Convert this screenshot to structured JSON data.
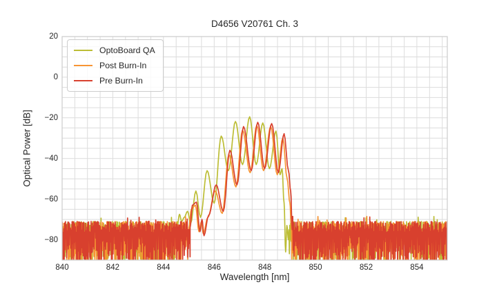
{
  "chart_data": {
    "type": "line",
    "title": "D4656 V20761 Ch. 3",
    "xlabel": "Wavelength [nm]",
    "ylabel": "Optical Power [dB]",
    "xlim": [
      840,
      855.2
    ],
    "ylim": [
      -90,
      20
    ],
    "xticks": [
      840,
      842,
      844,
      846,
      848,
      850,
      852,
      854
    ],
    "yticks": [
      20,
      0,
      -20,
      -40,
      -60,
      -80
    ],
    "minor_grid_x_step_nm": 0.5,
    "minor_grid_y_step_db": 5,
    "grid": true,
    "grid_color": "#dcdcdc",
    "frame_color": "#cccccc",
    "background_color": "#ffffff",
    "legend_position": "upper left",
    "noise_floor": {
      "top_db": -72,
      "bottom_db": -90,
      "description": "dense random noise band left of 844.8 nm and right of 849.1 nm, clipped at axis bottom"
    },
    "series": [
      {
        "name": "OptoBoard QA",
        "color": "#bcbd35",
        "seed": 7,
        "noise_regions": [
          [
            840,
            844.55
          ],
          [
            848.95,
            855.2
          ]
        ],
        "spectrum_points": [
          [
            844.55,
            -73
          ],
          [
            844.63,
            -67.5
          ],
          [
            844.72,
            -71
          ],
          [
            844.82,
            -69
          ],
          [
            844.95,
            -66
          ],
          [
            845.07,
            -72
          ],
          [
            845.28,
            -56
          ],
          [
            845.46,
            -69
          ],
          [
            845.72,
            -46
          ],
          [
            846.0,
            -62
          ],
          [
            846.28,
            -29
          ],
          [
            846.56,
            -46
          ],
          [
            846.84,
            -21.8
          ],
          [
            847.12,
            -43
          ],
          [
            847.4,
            -19.5
          ],
          [
            847.66,
            -43
          ],
          [
            847.92,
            -22.5
          ],
          [
            848.18,
            -45
          ],
          [
            848.44,
            -26.5
          ],
          [
            848.6,
            -48
          ],
          [
            848.68,
            -45
          ],
          [
            848.76,
            -62
          ],
          [
            848.82,
            -86
          ],
          [
            848.87,
            -73
          ],
          [
            848.93,
            -80
          ]
        ]
      },
      {
        "name": "Post Burn-In",
        "color": "#f79433",
        "seed": 13,
        "noise_regions": [
          [
            840,
            845.0
          ],
          [
            849.05,
            855.2
          ]
        ],
        "spectrum_points": [
          [
            845.0,
            -74
          ],
          [
            845.1,
            -65
          ],
          [
            845.26,
            -63
          ],
          [
            845.4,
            -76
          ],
          [
            845.5,
            -71
          ],
          [
            845.57,
            -77
          ],
          [
            845.75,
            -69
          ],
          [
            846.04,
            -56
          ],
          [
            846.32,
            -67
          ],
          [
            846.58,
            -38
          ],
          [
            846.86,
            -54
          ],
          [
            847.12,
            -26
          ],
          [
            847.42,
            -47
          ],
          [
            847.68,
            -23.8
          ],
          [
            847.95,
            -46
          ],
          [
            848.23,
            -24.2
          ],
          [
            848.49,
            -48
          ],
          [
            848.71,
            -29.8
          ],
          [
            848.88,
            -50
          ],
          [
            848.99,
            -62
          ],
          [
            849.04,
            -73
          ]
        ]
      },
      {
        "name": "Pre Burn-In",
        "color": "#d8402e",
        "seed": 29,
        "noise_regions": [
          [
            840,
            845.05
          ],
          [
            849.1,
            855.2
          ]
        ],
        "spectrum_points": [
          [
            845.05,
            -74
          ],
          [
            845.14,
            -63
          ],
          [
            845.3,
            -61.5
          ],
          [
            845.44,
            -76
          ],
          [
            845.52,
            -70
          ],
          [
            845.6,
            -78
          ],
          [
            845.78,
            -68
          ],
          [
            846.08,
            -53
          ],
          [
            846.36,
            -66
          ],
          [
            846.62,
            -36
          ],
          [
            846.9,
            -53
          ],
          [
            847.16,
            -24.3
          ],
          [
            847.46,
            -46
          ],
          [
            847.72,
            -22.2
          ],
          [
            847.99,
            -45
          ],
          [
            848.27,
            -22.8
          ],
          [
            848.53,
            -47
          ],
          [
            848.76,
            -27.8
          ],
          [
            848.93,
            -46
          ],
          [
            849.02,
            -56
          ],
          [
            849.08,
            -75
          ]
        ]
      }
    ]
  }
}
